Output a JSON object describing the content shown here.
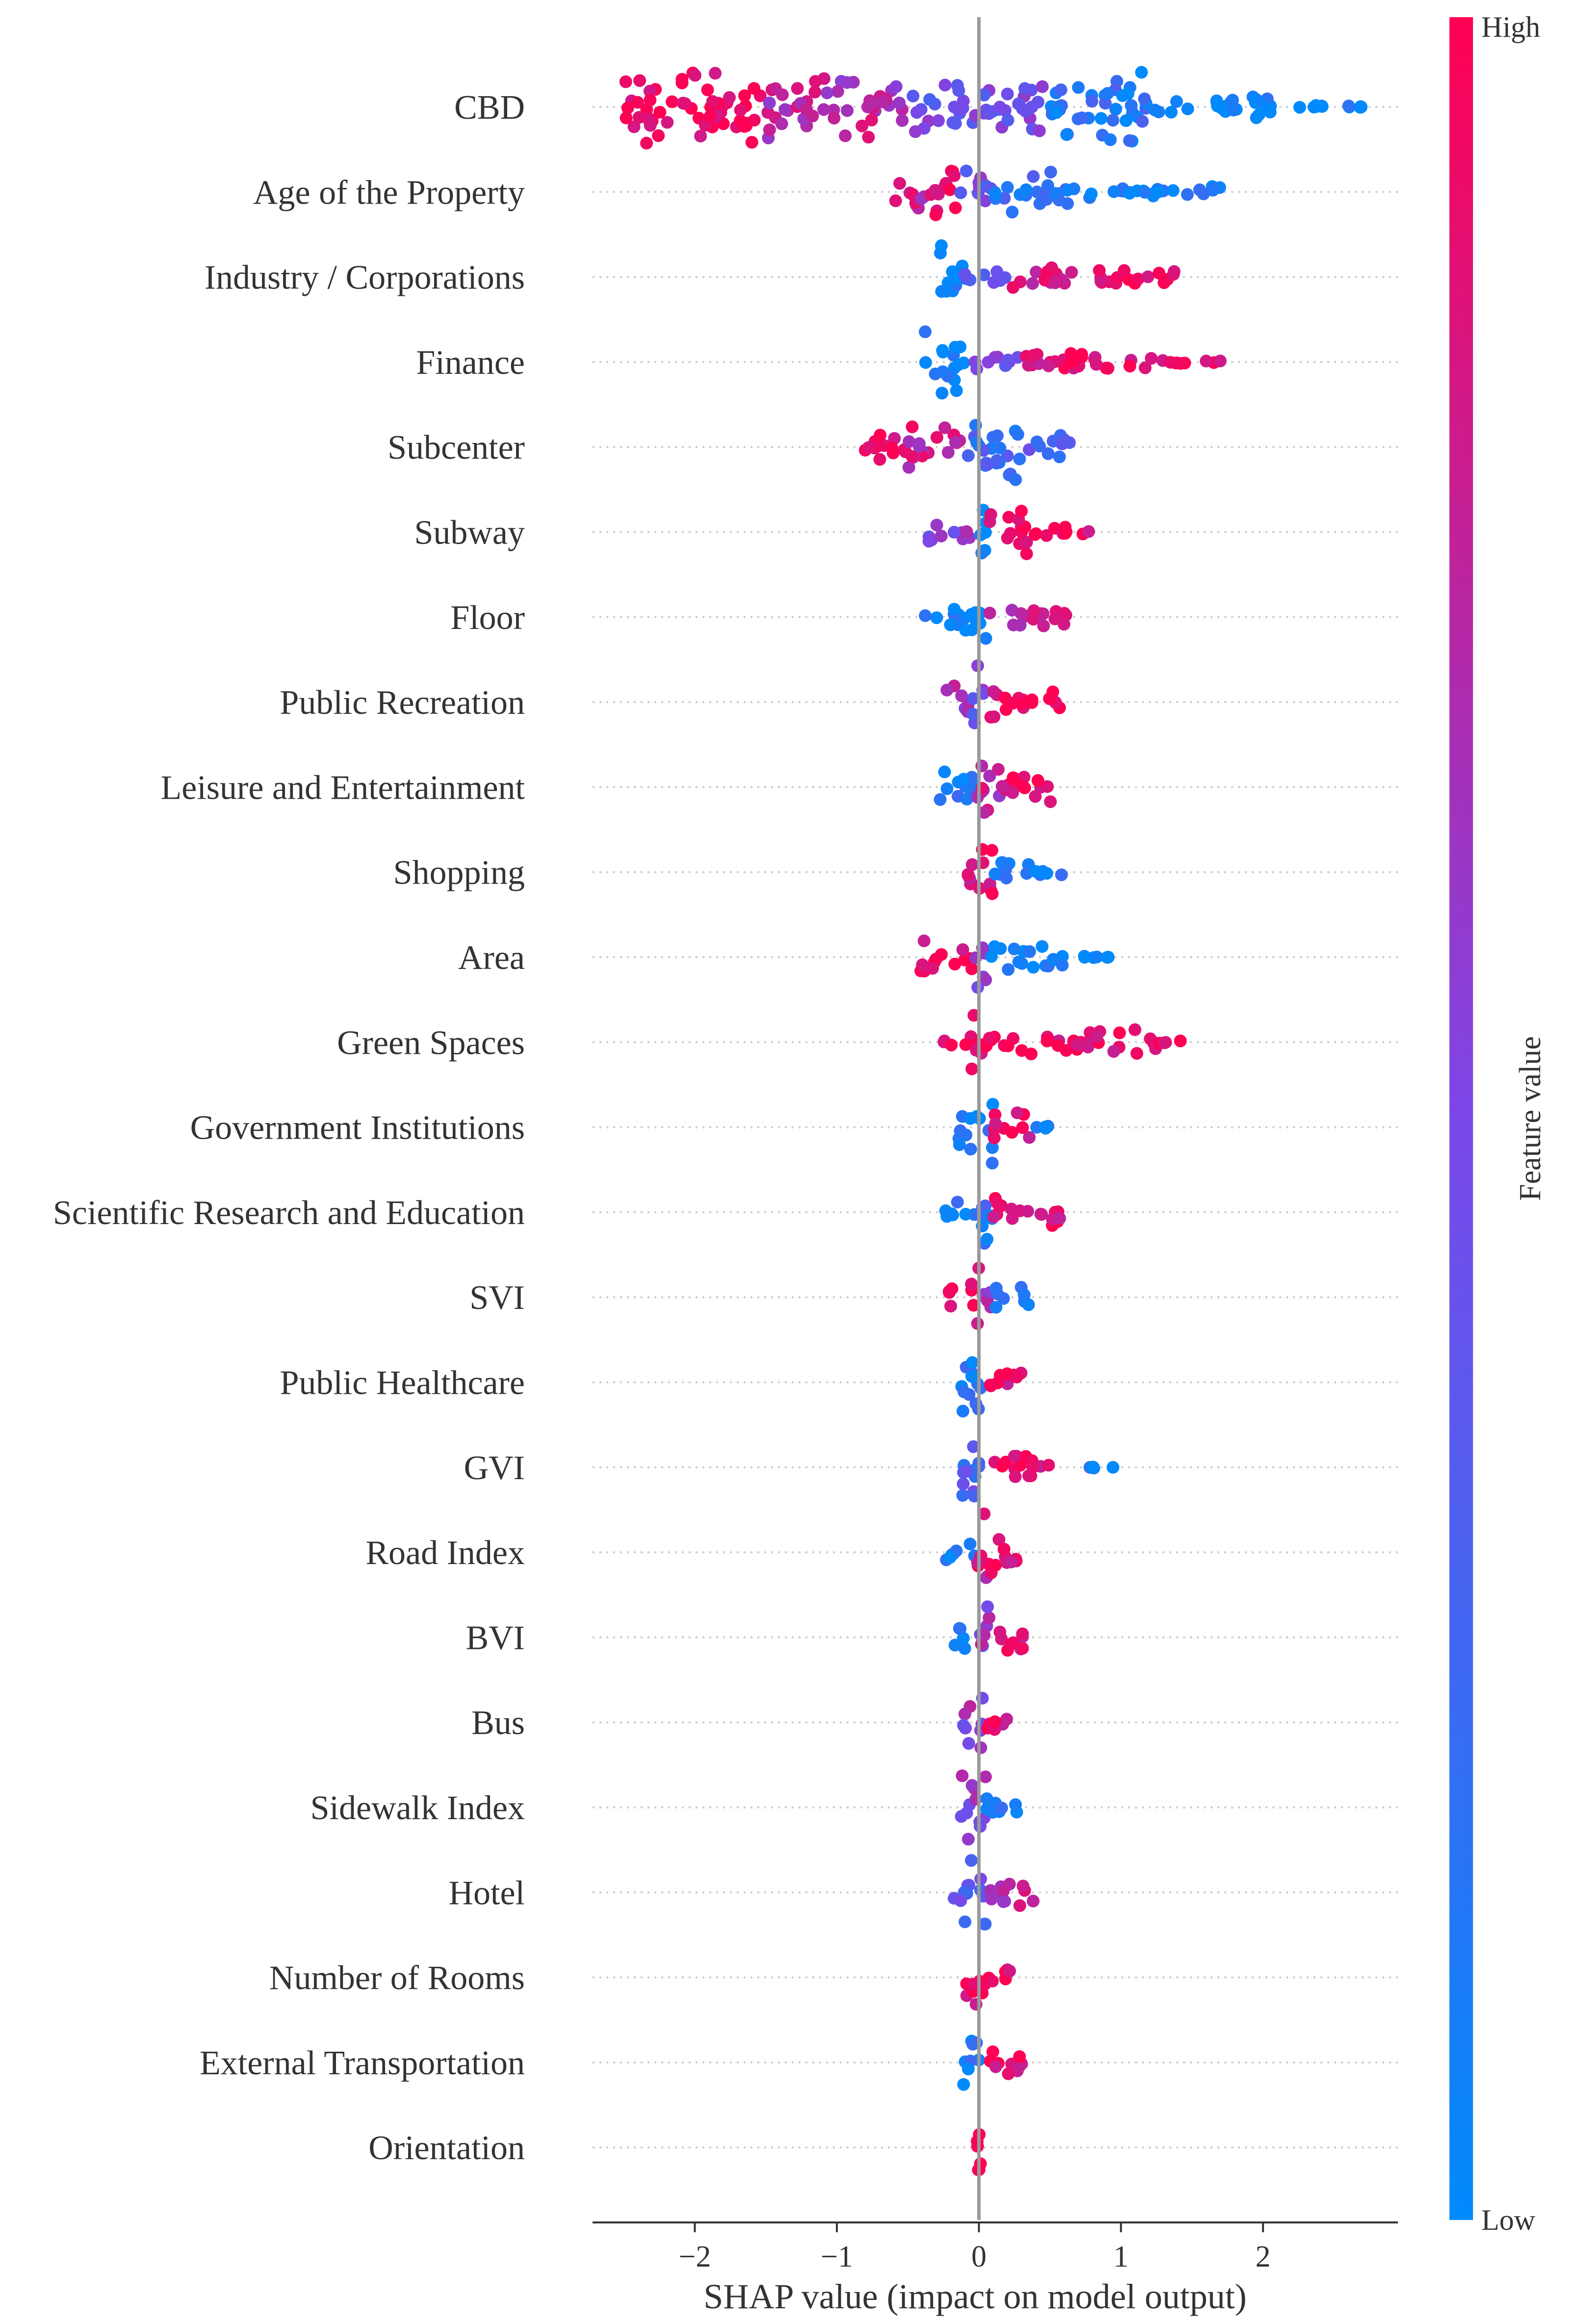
{
  "chart_data": {
    "type": "scatter",
    "xlabel": "SHAP value (impact on model output)",
    "xlim": [
      -2.72,
      2.95
    ],
    "xticks": [
      -2,
      -1,
      0,
      1,
      2
    ],
    "xtick_labels": [
      "−2",
      "−1",
      "0",
      "1",
      "2"
    ],
    "features": [
      {
        "name": "CBD",
        "min": -2.5,
        "max": 2.7,
        "segments": [
          {
            "from": -2.5,
            "to": -1.5,
            "density": 1.0,
            "value": 0.97
          },
          {
            "from": -1.5,
            "to": -0.5,
            "density": 0.85,
            "value": 0.72
          },
          {
            "from": -0.5,
            "to": 0.5,
            "density": 0.7,
            "value": 0.45
          },
          {
            "from": 0.5,
            "to": 1.2,
            "density": 1.0,
            "value": 0.15
          },
          {
            "from": 1.2,
            "to": 2.1,
            "density": 0.3,
            "value": 0.06
          },
          {
            "from": 2.1,
            "to": 2.7,
            "density": 0.05,
            "value": 0.02
          }
        ]
      },
      {
        "name": "Age of the Property",
        "min": -0.62,
        "max": 1.72,
        "segments": [
          {
            "from": -0.62,
            "to": -0.35,
            "density": 0.45,
            "value": 0.75
          },
          {
            "from": -0.35,
            "to": -0.15,
            "density": 1.0,
            "value": 0.93
          },
          {
            "from": -0.15,
            "to": 0.1,
            "density": 0.55,
            "value": 0.45
          },
          {
            "from": 0.1,
            "to": 0.7,
            "density": 0.55,
            "value": 0.2
          },
          {
            "from": 0.7,
            "to": 1.72,
            "density": 0.2,
            "value": 0.05
          }
        ]
      },
      {
        "name": "Industry / Corporations",
        "min": -0.3,
        "max": 1.45,
        "segments": [
          {
            "from": -0.3,
            "to": -0.1,
            "density": 1.0,
            "value": 0.04
          },
          {
            "from": -0.1,
            "to": 0.2,
            "density": 0.25,
            "value": 0.3
          },
          {
            "from": 0.2,
            "to": 0.7,
            "density": 0.35,
            "value": 0.85
          },
          {
            "from": 0.7,
            "to": 1.45,
            "density": 0.2,
            "value": 0.97
          }
        ]
      },
      {
        "name": "Finance",
        "min": -0.38,
        "max": 1.72,
        "segments": [
          {
            "from": -0.38,
            "to": -0.1,
            "density": 1.0,
            "value": 0.05
          },
          {
            "from": -0.1,
            "to": 0.3,
            "density": 0.25,
            "value": 0.45
          },
          {
            "from": 0.3,
            "to": 1.25,
            "density": 0.3,
            "value": 0.93
          },
          {
            "from": 1.25,
            "to": 1.72,
            "density": 0.05,
            "value": 0.98
          }
        ]
      },
      {
        "name": "Subcenter",
        "min": -0.92,
        "max": 0.65,
        "segments": [
          {
            "from": -0.92,
            "to": -0.5,
            "density": 0.35,
            "value": 0.97
          },
          {
            "from": -0.5,
            "to": -0.1,
            "density": 0.6,
            "value": 0.8
          },
          {
            "from": -0.1,
            "to": 0.3,
            "density": 1.0,
            "value": 0.22
          },
          {
            "from": 0.3,
            "to": 0.65,
            "density": 0.45,
            "value": 0.35
          }
        ]
      },
      {
        "name": "Subway",
        "min": -0.38,
        "max": 0.8,
        "segments": [
          {
            "from": -0.38,
            "to": -0.05,
            "density": 0.3,
            "value": 0.55
          },
          {
            "from": -0.05,
            "to": 0.05,
            "density": 1.0,
            "value": 0.08
          },
          {
            "from": 0.05,
            "to": 0.35,
            "density": 0.75,
            "value": 0.94
          },
          {
            "from": 0.35,
            "to": 0.8,
            "density": 0.15,
            "value": 0.96
          }
        ]
      },
      {
        "name": "Floor",
        "min": -0.38,
        "max": 0.62,
        "segments": [
          {
            "from": -0.38,
            "to": -0.1,
            "density": 0.3,
            "value": 0.05
          },
          {
            "from": -0.1,
            "to": 0.05,
            "density": 1.0,
            "value": 0.05
          },
          {
            "from": 0.05,
            "to": 0.62,
            "density": 0.3,
            "value": 0.8
          }
        ]
      },
      {
        "name": "Public Recreation",
        "min": -0.25,
        "max": 0.6,
        "segments": [
          {
            "from": -0.25,
            "to": -0.05,
            "density": 0.45,
            "value": 0.65
          },
          {
            "from": -0.05,
            "to": 0.05,
            "density": 1.0,
            "value": 0.45
          },
          {
            "from": 0.05,
            "to": 0.6,
            "density": 0.45,
            "value": 0.93
          }
        ]
      },
      {
        "name": "Leisure and Entertainment",
        "min": -0.28,
        "max": 0.58,
        "segments": [
          {
            "from": -0.28,
            "to": -0.02,
            "density": 0.75,
            "value": 0.1
          },
          {
            "from": -0.02,
            "to": 0.15,
            "density": 1.0,
            "value": 0.75
          },
          {
            "from": 0.15,
            "to": 0.58,
            "density": 0.45,
            "value": 0.93
          }
        ]
      },
      {
        "name": "Shopping",
        "min": -0.12,
        "max": 0.6,
        "segments": [
          {
            "from": -0.12,
            "to": 0.1,
            "density": 1.0,
            "value": 0.85
          },
          {
            "from": 0.1,
            "to": 0.35,
            "density": 0.5,
            "value": 0.12
          },
          {
            "from": 0.35,
            "to": 0.6,
            "density": 0.15,
            "value": 0.06
          }
        ]
      },
      {
        "name": "Area",
        "min": -0.42,
        "max": 0.92,
        "segments": [
          {
            "from": -0.42,
            "to": -0.05,
            "density": 0.45,
            "value": 0.96
          },
          {
            "from": -0.05,
            "to": 0.05,
            "density": 1.0,
            "value": 0.6
          },
          {
            "from": 0.05,
            "to": 0.6,
            "density": 0.35,
            "value": 0.04
          },
          {
            "from": 0.6,
            "to": 0.92,
            "density": 0.05,
            "value": 0.03
          }
        ]
      },
      {
        "name": "Green Spaces",
        "min": -0.25,
        "max": 1.45,
        "segments": [
          {
            "from": -0.25,
            "to": -0.05,
            "density": 0.25,
            "value": 0.95
          },
          {
            "from": -0.05,
            "to": 0.05,
            "density": 1.0,
            "value": 0.95
          },
          {
            "from": 0.05,
            "to": 1.25,
            "density": 0.35,
            "value": 0.95
          },
          {
            "from": 1.25,
            "to": 1.45,
            "density": 0.05,
            "value": 0.98
          }
        ]
      },
      {
        "name": "Government Institutions",
        "min": -0.15,
        "max": 0.58,
        "segments": [
          {
            "from": -0.15,
            "to": 0.1,
            "density": 1.0,
            "value": 0.12
          },
          {
            "from": 0.1,
            "to": 0.38,
            "density": 0.45,
            "value": 0.92
          },
          {
            "from": 0.38,
            "to": 0.58,
            "density": 0.05,
            "value": 0.04
          }
        ]
      },
      {
        "name": "Scientific Research and Education",
        "min": -0.25,
        "max": 0.58,
        "segments": [
          {
            "from": -0.25,
            "to": -0.03,
            "density": 0.35,
            "value": 0.08
          },
          {
            "from": -0.03,
            "to": 0.1,
            "density": 1.0,
            "value": 0.15
          },
          {
            "from": 0.1,
            "to": 0.58,
            "density": 0.45,
            "value": 0.93
          }
        ]
      },
      {
        "name": "SVI",
        "min": -0.22,
        "max": 0.35,
        "segments": [
          {
            "from": -0.22,
            "to": -0.02,
            "density": 0.45,
            "value": 0.92
          },
          {
            "from": -0.02,
            "to": 0.1,
            "density": 1.0,
            "value": 0.7
          },
          {
            "from": 0.1,
            "to": 0.35,
            "density": 0.4,
            "value": 0.12
          }
        ]
      },
      {
        "name": "Public Healthcare",
        "min": -0.15,
        "max": 0.32,
        "segments": [
          {
            "from": -0.15,
            "to": 0.05,
            "density": 1.0,
            "value": 0.1
          },
          {
            "from": 0.05,
            "to": 0.32,
            "density": 0.45,
            "value": 0.93
          }
        ]
      },
      {
        "name": "GVI",
        "min": -0.15,
        "max": 1.0,
        "segments": [
          {
            "from": -0.15,
            "to": 0.05,
            "density": 1.0,
            "value": 0.3
          },
          {
            "from": 0.05,
            "to": 0.5,
            "density": 0.4,
            "value": 0.93
          },
          {
            "from": 0.75,
            "to": 1.0,
            "density": 0.04,
            "value": 0.03
          }
        ]
      },
      {
        "name": "Road Index",
        "min": -0.25,
        "max": 0.35,
        "segments": [
          {
            "from": -0.25,
            "to": -0.03,
            "density": 0.4,
            "value": 0.1
          },
          {
            "from": -0.03,
            "to": 0.1,
            "density": 1.0,
            "value": 0.8
          },
          {
            "from": 0.1,
            "to": 0.35,
            "density": 0.4,
            "value": 0.93
          }
        ]
      },
      {
        "name": "BVI",
        "min": -0.18,
        "max": 0.35,
        "segments": [
          {
            "from": -0.18,
            "to": -0.02,
            "density": 0.35,
            "value": 0.1
          },
          {
            "from": -0.02,
            "to": 0.1,
            "density": 1.0,
            "value": 0.6
          },
          {
            "from": 0.1,
            "to": 0.35,
            "density": 0.45,
            "value": 0.93
          }
        ]
      },
      {
        "name": "Bus",
        "min": -0.12,
        "max": 0.25,
        "segments": [
          {
            "from": -0.12,
            "to": 0.05,
            "density": 1.0,
            "value": 0.6
          },
          {
            "from": 0.05,
            "to": 0.25,
            "density": 0.4,
            "value": 0.9
          }
        ]
      },
      {
        "name": "Sidewalk Index",
        "min": -0.15,
        "max": 0.32,
        "segments": [
          {
            "from": -0.15,
            "to": 0.05,
            "density": 1.0,
            "value": 0.6
          },
          {
            "from": 0.05,
            "to": 0.32,
            "density": 0.4,
            "value": 0.2
          }
        ]
      },
      {
        "name": "Hotel",
        "min": -0.18,
        "max": 0.42,
        "segments": [
          {
            "from": -0.18,
            "to": 0.05,
            "density": 1.0,
            "value": 0.4
          },
          {
            "from": 0.05,
            "to": 0.42,
            "density": 0.4,
            "value": 0.75
          }
        ]
      },
      {
        "name": "Number of Rooms",
        "min": -0.1,
        "max": 0.22,
        "segments": [
          {
            "from": -0.1,
            "to": 0.05,
            "density": 1.0,
            "value": 0.9
          },
          {
            "from": 0.05,
            "to": 0.22,
            "density": 0.4,
            "value": 0.95
          }
        ]
      },
      {
        "name": "External Transportation",
        "min": -0.12,
        "max": 0.32,
        "segments": [
          {
            "from": -0.12,
            "to": 0.02,
            "density": 1.0,
            "value": 0.1
          },
          {
            "from": 0.02,
            "to": 0.32,
            "density": 0.4,
            "value": 0.95
          }
        ]
      },
      {
        "name": "Orientation",
        "min": -0.05,
        "max": 0.05,
        "segments": [
          {
            "from": -0.05,
            "to": 0.05,
            "density": 1.0,
            "value": 0.96
          }
        ]
      }
    ],
    "colorbar": {
      "label": "Feature value",
      "high_label": "High",
      "low_label": "Low",
      "low_color": "#008afb",
      "high_color": "#ff0052"
    },
    "grid": false,
    "legend": "right (colorbar)"
  }
}
